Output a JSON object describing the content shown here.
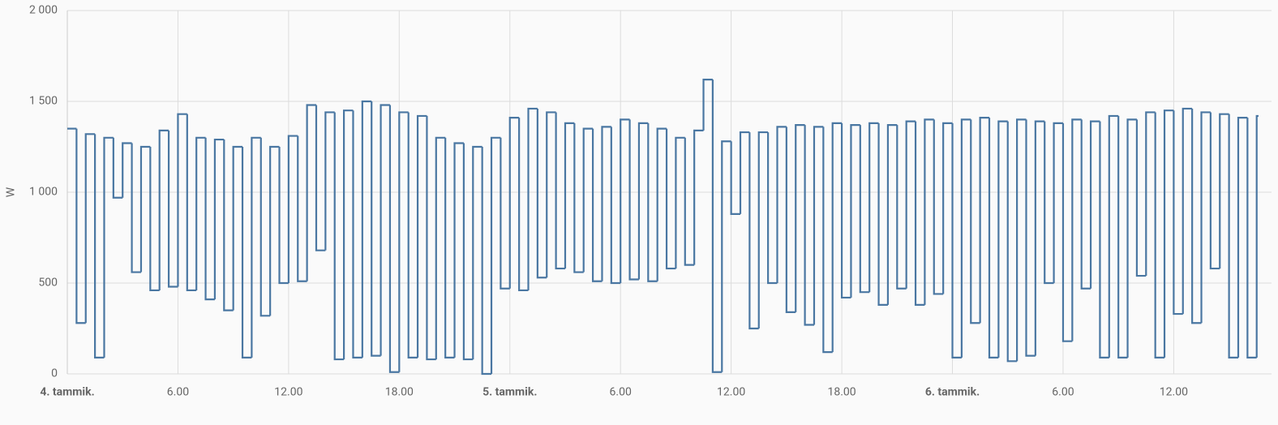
{
  "chart_data": {
    "type": "step",
    "y_label": "W",
    "color": "#4a77a2",
    "grid": true,
    "xlim": [
      0,
      64.6
    ],
    "xticks": [
      {
        "value": 0,
        "label": "4. tammik."
      },
      {
        "value": 6,
        "label": "6.00"
      },
      {
        "value": 12,
        "label": "12.00"
      },
      {
        "value": 18,
        "label": "18.00"
      },
      {
        "value": 24,
        "label": "5. tammik."
      },
      {
        "value": 30,
        "label": "6.00"
      },
      {
        "value": 36,
        "label": "12.00"
      },
      {
        "value": 42,
        "label": "18.00"
      },
      {
        "value": 48,
        "label": "6. tammik."
      },
      {
        "value": 54,
        "label": "6.00"
      },
      {
        "value": 60,
        "label": "12.00"
      }
    ],
    "ylim": [
      0,
      2000
    ],
    "yticks": [
      0,
      500,
      {
        "value": 1000,
        "label": "1 000"
      },
      {
        "value": 1500,
        "label": "1 500"
      },
      {
        "value": 2000,
        "label": "2 000"
      }
    ],
    "x": [
      0,
      0.5,
      1,
      1.5,
      2,
      2.5,
      3,
      3.5,
      4,
      4.5,
      5,
      5.5,
      6,
      6.5,
      7,
      7.5,
      8,
      8.5,
      9,
      9.5,
      10,
      10.5,
      11,
      11.5,
      12,
      12.5,
      13,
      13.5,
      14,
      14.5,
      15,
      15.5,
      16,
      16.5,
      17,
      17.5,
      18,
      18.5,
      19,
      19.5,
      20,
      20.5,
      21,
      21.5,
      22,
      22.5,
      23,
      23.5,
      24,
      24.5,
      25,
      25.5,
      26,
      26.5,
      27,
      27.5,
      28,
      28.5,
      29,
      29.5,
      30,
      30.5,
      31,
      31.5,
      32,
      32.5,
      33,
      33.5,
      34,
      34.5,
      35,
      35.5,
      36,
      36.5,
      37,
      37.5,
      38,
      38.5,
      39,
      39.5,
      40,
      40.5,
      41,
      41.5,
      42,
      42.5,
      43,
      43.5,
      44,
      44.5,
      45,
      45.5,
      46,
      46.5,
      47,
      47.5,
      48,
      48.5,
      49,
      49.5,
      50,
      50.5,
      51,
      51.5,
      52,
      52.5,
      53,
      53.5,
      54,
      54.5,
      55,
      55.5,
      56,
      56.5,
      57,
      57.5,
      58,
      58.5,
      59,
      59.5,
      60,
      60.5,
      61,
      61.5,
      62,
      62.5,
      63,
      63.5,
      64,
      64.5
    ],
    "values": [
      1350,
      280,
      1320,
      90,
      1300,
      970,
      1270,
      560,
      1250,
      460,
      1340,
      480,
      1430,
      460,
      1300,
      410,
      1290,
      350,
      1250,
      90,
      1300,
      320,
      1250,
      500,
      1310,
      510,
      1480,
      680,
      1440,
      80,
      1450,
      90,
      1500,
      100,
      1480,
      10,
      1440,
      90,
      1420,
      80,
      1300,
      90,
      1270,
      80,
      1250,
      0,
      1300,
      470,
      1410,
      460,
      1460,
      530,
      1440,
      580,
      1380,
      560,
      1350,
      510,
      1360,
      500,
      1400,
      520,
      1380,
      510,
      1350,
      580,
      1300,
      600,
      1340,
      1620,
      10,
      1280,
      880,
      1330,
      250,
      1330,
      500,
      1360,
      340,
      1370,
      270,
      1360,
      120,
      1380,
      420,
      1370,
      450,
      1380,
      380,
      1370,
      470,
      1390,
      380,
      1400,
      440,
      1380,
      90,
      1400,
      280,
      1410,
      90,
      1390,
      70,
      1400,
      100,
      1390,
      500,
      1380,
      180,
      1400,
      470,
      1390,
      90,
      1420,
      90,
      1400,
      540,
      1440,
      90,
      1450,
      330,
      1460,
      280,
      1440,
      580,
      1430,
      90,
      1410,
      90,
      1420
    ]
  }
}
